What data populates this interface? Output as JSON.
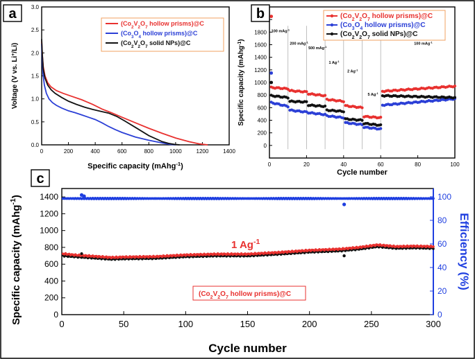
{
  "chart_data": [
    {
      "panel_label": "a",
      "type": "line",
      "xlabel": "Specific capacity (mAhg",
      "xlabel_sup": "-1",
      "xlabel_end": ")",
      "ylabel": "Voltage (V vs. Li",
      "ylabel_sup": "+",
      "ylabel_end": "/Li)",
      "xlim": [
        0,
        1400
      ],
      "ylim": [
        0,
        3.0
      ],
      "xticks": [
        "0",
        "200",
        "400",
        "600",
        "800",
        "1000",
        "1200",
        "1400"
      ],
      "yticks": [
        "0.0",
        "0.5",
        "1.0",
        "1.5",
        "2.0",
        "2.5",
        "3.0"
      ],
      "legend_position": "top-right",
      "series": [
        {
          "name": "(Co2V2O7 hollow prisms)@C",
          "label_parts": [
            "(Co",
            "2",
            "V",
            "2",
            "O",
            "7",
            " hollow prisms)@C"
          ],
          "color": "#e8312f",
          "x": [
            0,
            5,
            12,
            25,
            45,
            70,
            110,
            160,
            220,
            300,
            380,
            450,
            520,
            600,
            700,
            800,
            900,
            1000,
            1100,
            1180,
            1240
          ],
          "y": [
            2.25,
            1.95,
            1.7,
            1.5,
            1.35,
            1.26,
            1.18,
            1.12,
            1.06,
            0.98,
            0.88,
            0.78,
            0.7,
            0.6,
            0.48,
            0.36,
            0.25,
            0.15,
            0.07,
            0.02,
            0.0
          ]
        },
        {
          "name": "(Co3O4 hollow prisms)@C",
          "label_parts": [
            "(Co",
            "3",
            "O",
            "4",
            " hollow prisms)@C"
          ],
          "color": "#2b3fd6",
          "x": [
            0,
            5,
            10,
            20,
            35,
            55,
            80,
            110,
            150,
            200,
            250,
            300,
            350,
            400,
            450,
            500,
            550,
            600,
            700,
            800,
            900,
            960,
            1000
          ],
          "y": [
            2.2,
            1.8,
            1.55,
            1.3,
            1.12,
            1.0,
            0.92,
            0.86,
            0.8,
            0.74,
            0.7,
            0.65,
            0.6,
            0.55,
            0.48,
            0.4,
            0.33,
            0.27,
            0.17,
            0.1,
            0.04,
            0.01,
            0.0
          ]
        },
        {
          "name": "(Co2V2O7 solid NPs)@C",
          "label_parts": [
            "(Co",
            "2",
            "V",
            "2",
            "O",
            "7",
            " solid NPs)@C"
          ],
          "color": "#111111",
          "x": [
            0,
            5,
            12,
            25,
            45,
            70,
            100,
            150,
            200,
            260,
            320,
            380,
            440,
            500,
            560,
            620,
            700,
            800,
            900,
            950,
            990,
            1030
          ],
          "y": [
            2.3,
            1.95,
            1.65,
            1.45,
            1.3,
            1.2,
            1.12,
            1.03,
            0.95,
            0.88,
            0.82,
            0.77,
            0.73,
            0.69,
            0.62,
            0.52,
            0.38,
            0.2,
            0.07,
            0.03,
            0.01,
            0.0
          ]
        }
      ]
    },
    {
      "panel_label": "b",
      "type": "scatter",
      "xlabel": "Cycle number",
      "ylabel": "Specific capacity (mAhg",
      "ylabel_sup": "-1",
      "ylabel_end": ")",
      "xlim": [
        0,
        100
      ],
      "ylim": [
        -200,
        2200
      ],
      "xticks": [
        "0",
        "20",
        "40",
        "60",
        "80",
        "100"
      ],
      "yticks": [
        "0",
        "200",
        "400",
        "600",
        "800",
        "1000",
        "1200",
        "1400",
        "1600",
        "1800",
        "2000"
      ],
      "rate_dividers": [
        10,
        20,
        30,
        40,
        50,
        60
      ],
      "annotations": [
        {
          "text": "100 mAg",
          "sup": "-1",
          "x": 1,
          "y": 1800
        },
        {
          "text": "200 mAg",
          "sup": "-1",
          "x": 11,
          "y": 1600
        },
        {
          "text": "500 mAg",
          "sup": "-1",
          "x": 21,
          "y": 1530
        },
        {
          "text": "1 Ag",
          "sup": "-1",
          "x": 32,
          "y": 1300
        },
        {
          "text": "2 Ag",
          "sup": "-1",
          "x": 42,
          "y": 1160
        },
        {
          "text": "5 Ag",
          "sup": "-1",
          "x": 53,
          "y": 790
        },
        {
          "text": "100 mAg",
          "sup": "-1",
          "x": 78,
          "y": 1600
        }
      ],
      "legend_position": "top-right",
      "series": [
        {
          "name": "(Co2V2O7 hollow prisms)@C",
          "label_parts": [
            "(Co",
            "2",
            "V",
            "2",
            "O",
            "7",
            " hollow prisms)@C"
          ],
          "color": "#e8312f",
          "segments": [
            [
              1,
              10,
              920,
              900
            ],
            [
              11,
              20,
              870,
              850
            ],
            [
              21,
              30,
              820,
              790
            ],
            [
              31,
              40,
              730,
              700
            ],
            [
              41,
              50,
              630,
              600
            ],
            [
              51,
              60,
              460,
              440
            ],
            [
              61,
              100,
              860,
              940
            ]
          ],
          "first_point": [
            1,
            2050
          ]
        },
        {
          "name": "(Co3O4 hollow prisms)@C",
          "label_parts": [
            "(Co",
            "3",
            "O",
            "4",
            " hollow prisms)@C"
          ],
          "color": "#2b3fd6",
          "segments": [
            [
              1,
              10,
              680,
              620
            ],
            [
              11,
              20,
              560,
              530
            ],
            [
              21,
              30,
              520,
              490
            ],
            [
              31,
              40,
              470,
              440
            ],
            [
              41,
              50,
              360,
              330
            ],
            [
              51,
              60,
              290,
              260
            ],
            [
              61,
              100,
              640,
              740
            ]
          ],
          "first_point": [
            1,
            1150
          ]
        },
        {
          "name": "(Co2V2O7 solid NPs)@C",
          "label_parts": [
            "(Co",
            "2",
            "V",
            "2",
            "O",
            "7",
            " solid NPs)@C"
          ],
          "color": "#111111",
          "segments": [
            [
              1,
              10,
              790,
              760
            ],
            [
              11,
              20,
              700,
              690
            ],
            [
              21,
              30,
              640,
              620
            ],
            [
              31,
              40,
              560,
              540
            ],
            [
              41,
              50,
              420,
              400
            ],
            [
              51,
              60,
              350,
              320
            ],
            [
              61,
              100,
              790,
              760
            ]
          ],
          "first_point": [
            1,
            1000
          ]
        }
      ]
    },
    {
      "panel_label": "c",
      "type": "scatter",
      "xlabel": "Cycle number",
      "ylabel": "Specific capacity (mAhg",
      "ylabel_sup": "-1",
      "ylabel_end": ")",
      "ylabel_right": "Efficiency (%)",
      "xlim": [
        0,
        300
      ],
      "ylim": [
        0,
        1500
      ],
      "ylim_right": [
        0,
        107
      ],
      "xticks": [
        "0",
        "50",
        "100",
        "150",
        "200",
        "250",
        "300"
      ],
      "yticks": [
        "0",
        "200",
        "400",
        "600",
        "800",
        "1000",
        "1200",
        "1400"
      ],
      "yticks_right": [
        "0",
        "20",
        "40",
        "60",
        "80",
        "100"
      ],
      "annotation": {
        "text": "1 Ag",
        "sup": "-1"
      },
      "legend_label_parts": [
        "(Co",
        "2",
        "V",
        "2",
        "O",
        "7",
        " hollow prisms)@C"
      ],
      "series": [
        {
          "name": "discharge",
          "color": "#111111",
          "x": [
            1,
            10,
            20,
            30,
            40,
            50,
            75,
            100,
            125,
            150,
            175,
            200,
            225,
            240,
            255,
            270,
            285,
            300
          ],
          "y": [
            700,
            690,
            680,
            670,
            660,
            665,
            670,
            690,
            700,
            700,
            720,
            745,
            760,
            780,
            810,
            790,
            795,
            790
          ]
        },
        {
          "name": "charge",
          "color": "#e8312f",
          "x": [
            1,
            10,
            20,
            30,
            40,
            50,
            75,
            100,
            125,
            150,
            175,
            200,
            225,
            240,
            255,
            270,
            285,
            300
          ],
          "y": [
            725,
            710,
            700,
            690,
            680,
            685,
            690,
            710,
            720,
            720,
            740,
            765,
            780,
            800,
            830,
            810,
            815,
            810
          ]
        },
        {
          "name": "efficiency",
          "color": "#1f3fe0",
          "axis": "right",
          "x": [
            1,
            300
          ],
          "y": [
            98.5,
            98.5
          ],
          "outliers": [
            [
              16,
              101.5
            ],
            [
              18,
              100.5
            ],
            [
              228,
              93.5
            ]
          ]
        }
      ]
    }
  ]
}
